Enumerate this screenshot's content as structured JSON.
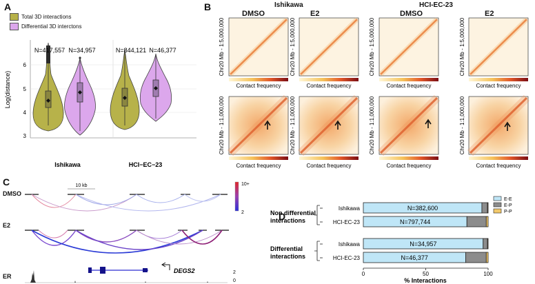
{
  "panels": {
    "a": "A",
    "b": "B",
    "c": "C",
    "d": "D"
  },
  "colors": {
    "total": "#b7b24a",
    "differential": "#dca7ec",
    "stroke": "#333333"
  },
  "panel_a": {
    "legend": [
      "Total 3D interactions",
      "Differential 3D interctons"
    ],
    "ylabel": "Log(distance)",
    "yticks": [
      "3",
      "4",
      "5",
      "6"
    ],
    "groups": [
      "Ishikawa",
      "HCI−EC−23"
    ],
    "n_labels": [
      "N=417,557",
      "N=34,957",
      "N=844,121",
      "N=46,377"
    ]
  },
  "panel_b": {
    "groups": [
      "Ishikawa",
      "HCI-EC-23"
    ],
    "conditions": [
      "DMSO",
      "E2",
      "DMSO",
      "E2"
    ],
    "ylabels": [
      "Chr20 Mb - 1:5,000,000",
      "Chr20 Mb - 1:1,000,000"
    ],
    "colorbar_label": "Contact frequency"
  },
  "panel_c": {
    "tracks": [
      "DMSO",
      "E2",
      "ER"
    ],
    "scale": "10 kb",
    "scale_max": "10+",
    "scale_min": "2",
    "gene": "DEGS2",
    "er_ticks": [
      "2",
      "0"
    ]
  },
  "chart_data": {
    "type": "bar",
    "stacked": true,
    "orientation": "horizontal",
    "title": "",
    "xlabel": "% Interactions",
    "xlim": [
      0,
      100
    ],
    "xticks": [
      "0",
      "50",
      "100"
    ],
    "categories": [
      "Ishikawa",
      "HCI-EC-23",
      "Ishikawa",
      "HCI-EC-23"
    ],
    "category_groups": [
      "Non differential interactions",
      "Differential interactions"
    ],
    "n_labels": [
      "N=382,600",
      "N=797,744",
      "N=34,957",
      "N=46,377"
    ],
    "series": [
      {
        "name": "E-E",
        "color": "#bfe6f7",
        "values": [
          95,
          83,
          96,
          82
        ]
      },
      {
        "name": "E-P",
        "color": "#8c8c8c",
        "values": [
          4.5,
          15.5,
          3.5,
          16.5
        ]
      },
      {
        "name": "P-P",
        "color": "#f2c96b",
        "values": [
          0.5,
          1.5,
          0.5,
          1.5
        ]
      }
    ],
    "legend": "top-right"
  }
}
